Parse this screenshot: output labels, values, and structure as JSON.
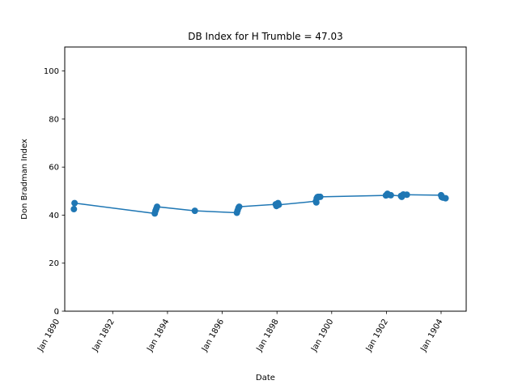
{
  "chart_data": {
    "type": "line",
    "title": "DB Index for H Trumble = 47.03",
    "xlabel": "Date",
    "ylabel": "Don Bradman Index",
    "ylim": [
      0,
      110
    ],
    "xlim": [
      "1890-04-01",
      "1904-12-01"
    ],
    "y_ticks": [
      0,
      20,
      40,
      60,
      80,
      100
    ],
    "x_ticks": [
      "1890-01-01",
      "1892-01-01",
      "1894-01-01",
      "1896-01-01",
      "1898-01-01",
      "1900-01-01",
      "1902-01-01",
      "1904-01-01"
    ],
    "x_tick_labels": [
      "Jan 1890",
      "Jan 1892",
      "Jan 1894",
      "Jan 1896",
      "Jan 1898",
      "Jan 1900",
      "Jan 1902",
      "Jan 1904"
    ],
    "grid": false,
    "color": "#1f77b4",
    "series": [
      {
        "points": [
          [
            "1890-08-01",
            42.5
          ],
          [
            "1890-08-10",
            45.0
          ],
          [
            "1893-07-15",
            40.7
          ],
          [
            "1893-07-25",
            41.8
          ],
          [
            "1893-08-05",
            42.7
          ],
          [
            "1893-08-15",
            43.5
          ],
          [
            "1895-01-01",
            41.8
          ],
          [
            "1896-07-15",
            41.0
          ],
          [
            "1896-07-25",
            42.0
          ],
          [
            "1896-08-05",
            43.0
          ],
          [
            "1896-08-15",
            43.5
          ],
          [
            "1897-12-15",
            44.5
          ],
          [
            "1897-12-25",
            43.8
          ],
          [
            "1898-01-05",
            44.2
          ],
          [
            "1898-01-15",
            45.0
          ],
          [
            "1898-01-25",
            44.3
          ],
          [
            "1899-06-05",
            45.8
          ],
          [
            "1899-06-10",
            45.3
          ],
          [
            "1899-06-15",
            47.0
          ],
          [
            "1899-06-25",
            47.5
          ],
          [
            "1899-07-05",
            47.6
          ],
          [
            "1899-08-01",
            47.6
          ],
          [
            "1901-12-25",
            48.2
          ],
          [
            "1902-01-05",
            48.4
          ],
          [
            "1902-01-15",
            48.9
          ],
          [
            "1902-01-25",
            48.5
          ],
          [
            "1902-03-01",
            48.3
          ],
          [
            "1902-07-15",
            48.0
          ],
          [
            "1902-07-25",
            47.6
          ],
          [
            "1902-08-05",
            48.2
          ],
          [
            "1902-08-15",
            48.6
          ],
          [
            "1902-10-01",
            48.5
          ],
          [
            "1904-01-01",
            48.3
          ],
          [
            "1904-01-10",
            47.5
          ],
          [
            "1904-01-25",
            47.3
          ],
          [
            "1904-03-01",
            47.03
          ]
        ]
      }
    ]
  }
}
